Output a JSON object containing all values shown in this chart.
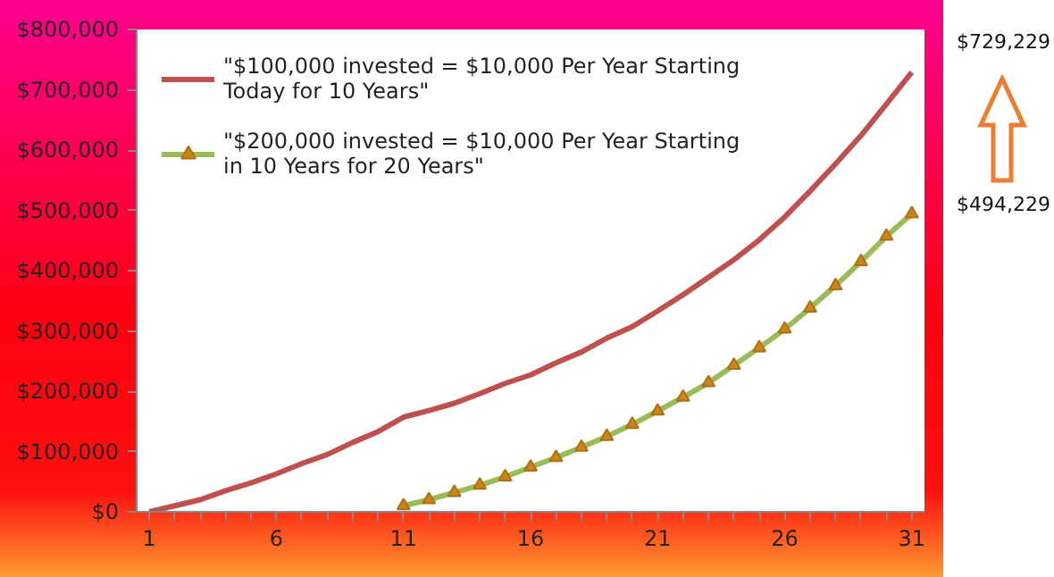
{
  "chart_data": {
    "type": "line",
    "x": [
      1,
      2,
      3,
      4,
      5,
      6,
      7,
      8,
      9,
      10,
      11,
      12,
      13,
      14,
      15,
      16,
      17,
      18,
      19,
      20,
      21,
      22,
      23,
      24,
      25,
      26,
      27,
      28,
      29,
      30,
      31
    ],
    "series": [
      {
        "name": "\"$100,000 invested = $10,000 Per Year Starting Today for 10 Years\"",
        "color": "#c0504d",
        "marker": "none",
        "values": [
          0,
          10000,
          20000,
          35000,
          48000,
          63000,
          80000,
          95000,
          115000,
          133000,
          157000,
          168000,
          180000,
          196000,
          213000,
          227000,
          247000,
          265000,
          288000,
          307000,
          333000,
          360000,
          389000,
          418000,
          451000,
          489000,
          532000,
          577000,
          624000,
          676000,
          729229
        ]
      },
      {
        "name": "\"$200,000 invested = $10,000 Per Year Starting in 10 Years for 20 Years\"",
        "color": "#9bbb59",
        "marker": "triangle",
        "x": [
          11,
          12,
          13,
          14,
          15,
          16,
          17,
          18,
          19,
          20,
          21,
          22,
          23,
          24,
          25,
          26,
          27,
          28,
          29,
          30,
          31
        ],
        "values": [
          10000,
          20000,
          32000,
          44000,
          58000,
          74000,
          90000,
          107000,
          125000,
          145000,
          167000,
          190000,
          214000,
          243000,
          272000,
          303000,
          338000,
          375000,
          415000,
          457000,
          494229
        ]
      }
    ],
    "xlim": [
      0.5,
      31.5
    ],
    "xticks": [
      1,
      6,
      11,
      16,
      21,
      26,
      31
    ],
    "ylim": [
      0,
      800000
    ],
    "yticks": [
      {
        "value": 0,
        "label": "$0"
      },
      {
        "value": 100000,
        "label": "$100,000"
      },
      {
        "value": 200000,
        "label": "$200,000"
      },
      {
        "value": 300000,
        "label": "$300,000"
      },
      {
        "value": 400000,
        "label": "$400,000"
      },
      {
        "value": 500000,
        "label": "$500,000"
      },
      {
        "value": 600000,
        "label": "$600,000"
      },
      {
        "value": 700000,
        "label": "$700,000"
      },
      {
        "value": 800000,
        "label": "$800,000"
      }
    ],
    "grid": false,
    "legend": "top left",
    "annotations": [
      "$729,229",
      "$494,229"
    ]
  }
}
